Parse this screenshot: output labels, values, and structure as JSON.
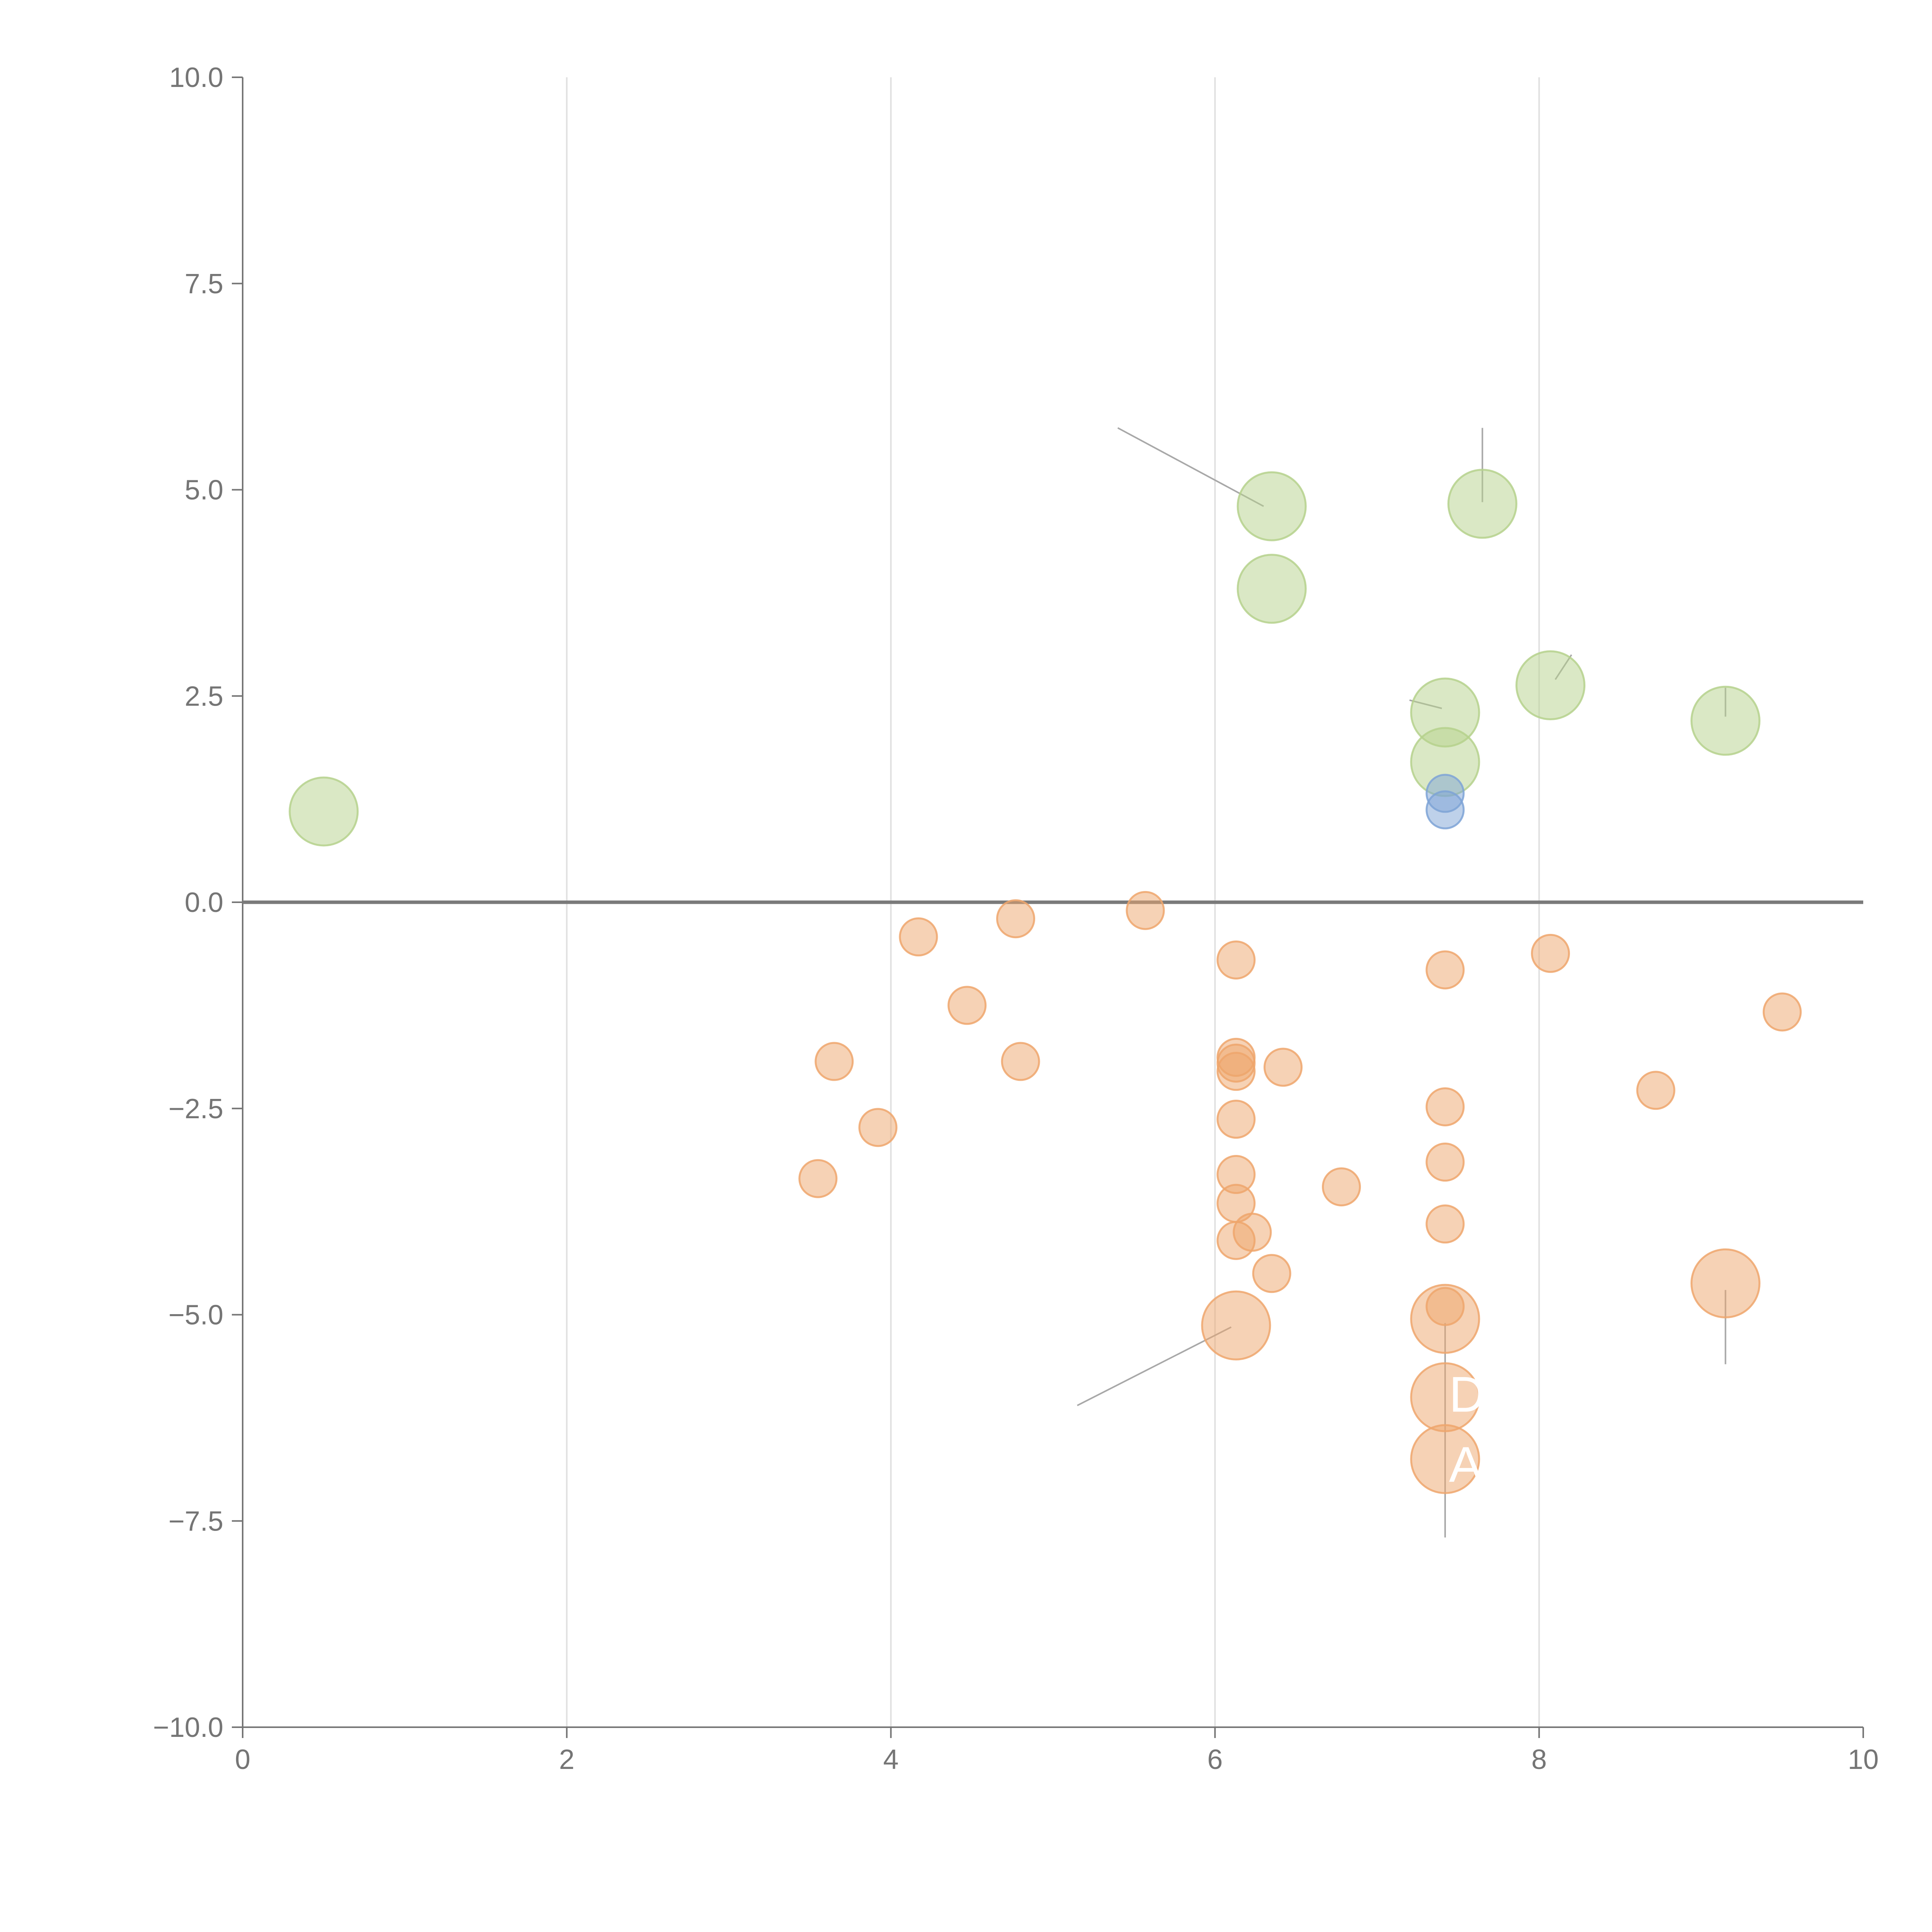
{
  "chart_data": {
    "type": "scatter",
    "title": "",
    "xlabel": "",
    "ylabel": "",
    "xlim": [
      0,
      10
    ],
    "ylim": [
      -10,
      10
    ],
    "x_ticks": [
      "0",
      "2",
      "4",
      "6",
      "8",
      "10"
    ],
    "y_ticks": [
      "10.0",
      "7.5",
      "5.0",
      "2.5",
      "0.0",
      "−2.5",
      "−5.0",
      "−7.5",
      "−10.0"
    ],
    "grid": "vertical",
    "colors": {
      "green": "#b5d18c",
      "orange": "#eea66c",
      "blue": "#7ea3d6"
    },
    "series": [
      {
        "name": "green",
        "color": "#b5d18c",
        "points": [
          {
            "x": 0.5,
            "y": 1.1,
            "size": "large"
          },
          {
            "x": 6.35,
            "y": 4.8,
            "size": "large"
          },
          {
            "x": 6.35,
            "y": 3.8,
            "size": "large"
          },
          {
            "x": 7.65,
            "y": 4.83,
            "size": "large"
          },
          {
            "x": 7.42,
            "y": 2.3,
            "size": "large"
          },
          {
            "x": 7.42,
            "y": 1.7,
            "size": "large"
          },
          {
            "x": 8.07,
            "y": 2.63,
            "size": "large"
          },
          {
            "x": 9.15,
            "y": 2.2,
            "size": "large"
          }
        ]
      },
      {
        "name": "blue",
        "color": "#7ea3d6",
        "points": [
          {
            "x": 7.42,
            "y": 1.32,
            "size": "small"
          },
          {
            "x": 7.42,
            "y": 1.12,
            "size": "small"
          }
        ]
      },
      {
        "name": "orange",
        "color": "#eea66c",
        "points": [
          {
            "x": 3.55,
            "y": -3.35,
            "size": "small"
          },
          {
            "x": 3.65,
            "y": -1.93,
            "size": "small"
          },
          {
            "x": 3.92,
            "y": -2.73,
            "size": "small"
          },
          {
            "x": 4.17,
            "y": -0.42,
            "size": "small"
          },
          {
            "x": 4.47,
            "y": -1.25,
            "size": "small"
          },
          {
            "x": 4.77,
            "y": -0.2,
            "size": "small"
          },
          {
            "x": 4.8,
            "y": -1.93,
            "size": "small"
          },
          {
            "x": 5.57,
            "y": -0.1,
            "size": "small"
          },
          {
            "x": 6.13,
            "y": -0.7,
            "size": "small"
          },
          {
            "x": 6.13,
            "y": -1.88,
            "size": "small"
          },
          {
            "x": 6.13,
            "y": -1.95,
            "size": "small"
          },
          {
            "x": 6.13,
            "y": -2.05,
            "size": "small"
          },
          {
            "x": 6.42,
            "y": -2.0,
            "size": "small"
          },
          {
            "x": 6.13,
            "y": -2.63,
            "size": "small"
          },
          {
            "x": 6.13,
            "y": -3.3,
            "size": "small"
          },
          {
            "x": 6.13,
            "y": -3.65,
            "size": "small"
          },
          {
            "x": 6.13,
            "y": -4.1,
            "size": "small"
          },
          {
            "x": 6.23,
            "y": -4.0,
            "size": "small"
          },
          {
            "x": 6.35,
            "y": -4.5,
            "size": "small"
          },
          {
            "x": 6.78,
            "y": -3.45,
            "size": "small"
          },
          {
            "x": 6.13,
            "y": -5.13,
            "size": "large"
          },
          {
            "x": 7.42,
            "y": -0.82,
            "size": "small"
          },
          {
            "x": 7.42,
            "y": -2.48,
            "size": "small"
          },
          {
            "x": 7.42,
            "y": -3.15,
            "size": "small"
          },
          {
            "x": 7.42,
            "y": -3.9,
            "size": "small"
          },
          {
            "x": 7.42,
            "y": -4.9,
            "size": "small"
          },
          {
            "x": 7.42,
            "y": -5.05,
            "size": "large"
          },
          {
            "x": 7.42,
            "y": -6.0,
            "size": "large"
          },
          {
            "x": 7.42,
            "y": -6.75,
            "size": "large"
          },
          {
            "x": 8.07,
            "y": -0.62,
            "size": "small"
          },
          {
            "x": 8.72,
            "y": -2.28,
            "size": "small"
          },
          {
            "x": 9.15,
            "y": -4.62,
            "size": "large"
          },
          {
            "x": 9.5,
            "y": -1.33,
            "size": "small"
          }
        ]
      }
    ],
    "annotations": [
      {
        "label": "D",
        "x": 7.42,
        "y": -5.95
      },
      {
        "label": "A",
        "x": 7.42,
        "y": -6.8
      }
    ],
    "leader_lines": [
      {
        "x1": 6.3,
        "y1": 4.8,
        "x2": 5.4,
        "y2": 5.75
      },
      {
        "x1": 7.65,
        "y1": 4.85,
        "x2": 7.65,
        "y2": 5.75
      },
      {
        "x1": 7.4,
        "y1": 2.35,
        "x2": 7.2,
        "y2": 2.45
      },
      {
        "x1": 8.1,
        "y1": 2.7,
        "x2": 8.2,
        "y2": 3.0
      },
      {
        "x1": 9.15,
        "y1": 2.25,
        "x2": 9.15,
        "y2": 2.6
      },
      {
        "x1": 6.1,
        "y1": -5.15,
        "x2": 5.15,
        "y2": -6.1
      },
      {
        "x1": 7.42,
        "y1": -5.1,
        "x2": 7.42,
        "y2": -7.7
      },
      {
        "x1": 9.15,
        "y1": -4.7,
        "x2": 9.15,
        "y2": -5.6
      }
    ]
  }
}
